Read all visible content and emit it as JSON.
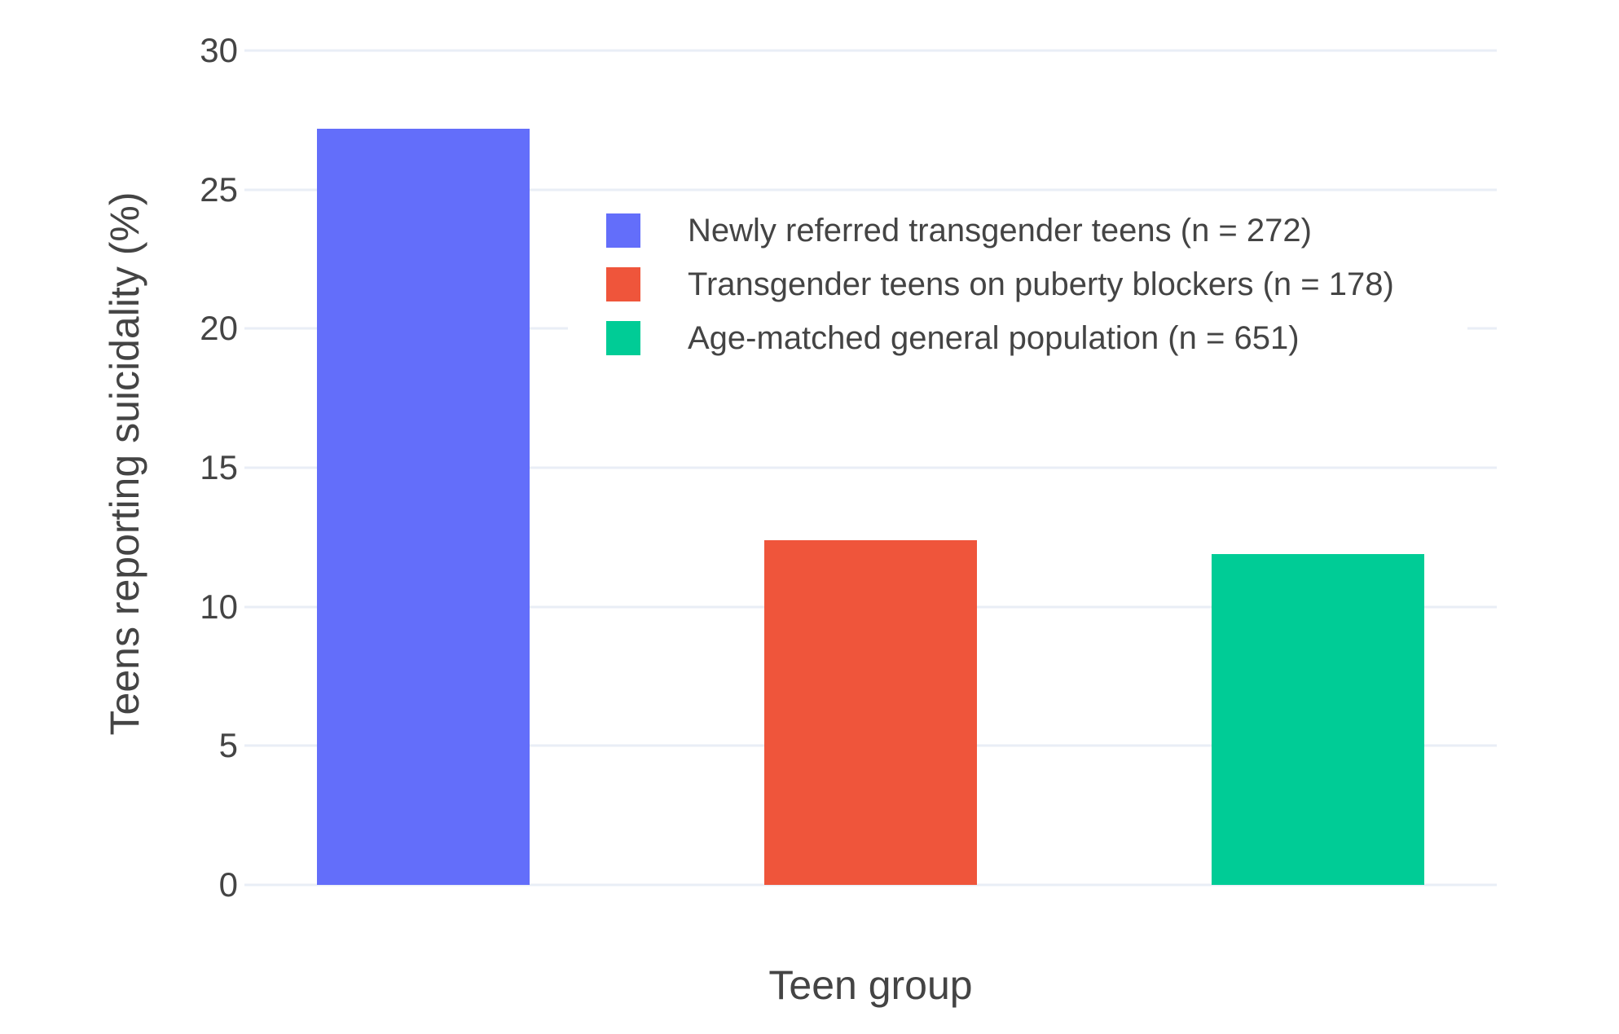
{
  "chart_data": {
    "type": "bar",
    "title": "",
    "xlabel": "Teen group",
    "ylabel": "Teens reporting suicidality (%)",
    "ylim": [
      0,
      30
    ],
    "yticks": [
      0,
      5,
      10,
      15,
      20,
      25,
      30
    ],
    "grid": true,
    "legend_position": "inside-top-center",
    "series": [
      {
        "name": "Newly referred transgender teens (n = 272)",
        "value": 27.2,
        "color": "#636EFA"
      },
      {
        "name": "Transgender teens on puberty blockers (n = 178)",
        "value": 12.4,
        "color": "#EF553B"
      },
      {
        "name": "Age-matched general population (n = 651)",
        "value": 11.9,
        "color": "#00CC96"
      }
    ]
  },
  "colors": {
    "background": "#FFFFFF",
    "grid": "#E9EEF6",
    "text": "#444444"
  }
}
